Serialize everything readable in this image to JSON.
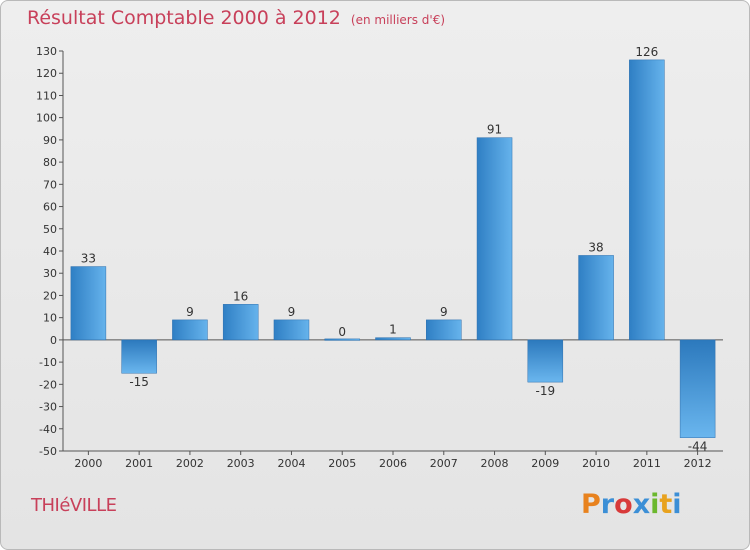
{
  "header": {
    "title": "Résultat Comptable 2000 à 2012",
    "subtitle": "(en milliers d'€)"
  },
  "footer": {
    "city": "THIéVILLE",
    "logo": "Proxiti",
    "logo_colors": [
      "#e8821e",
      "#3c8fd6",
      "#d83a3a",
      "#3c8fd6",
      "#6cb82e",
      "#e8a21e",
      "#3c8fd6"
    ]
  },
  "chart_data": {
    "type": "bar",
    "title": "Résultat Comptable 2000 à 2012",
    "subtitle": "(en milliers d'€)",
    "xlabel": "",
    "ylabel": "",
    "categories": [
      "2000",
      "2001",
      "2002",
      "2003",
      "2004",
      "2005",
      "2006",
      "2007",
      "2008",
      "2009",
      "2010",
      "2011",
      "2012"
    ],
    "values": [
      33,
      -15,
      9,
      16,
      9,
      0,
      1,
      9,
      91,
      -19,
      38,
      126,
      -44
    ],
    "data_labels": [
      "33",
      "-15",
      "9",
      "16",
      "9",
      "0",
      "1",
      "9",
      "91",
      "-19",
      "38",
      "126",
      "-44"
    ],
    "ylim": [
      -50,
      130
    ],
    "ytick_step": 10,
    "grid": false,
    "bar_color": "#3b8fd3",
    "bar_color_light": "#63b1ea"
  }
}
